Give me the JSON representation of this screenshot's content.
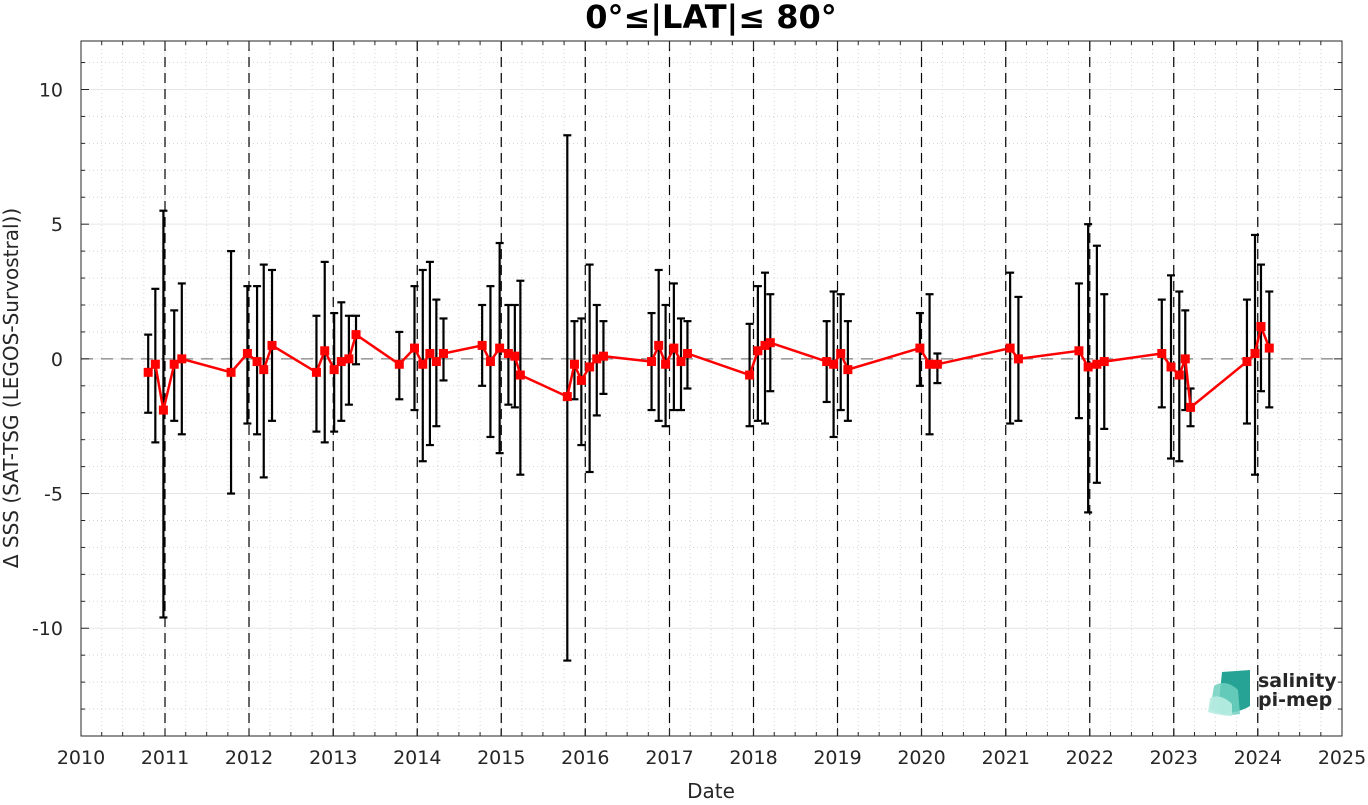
{
  "chart_data": {
    "type": "line",
    "title": "0°≤|LAT|≤ 80°",
    "xlabel": "Date",
    "ylabel": "Δ SSS (SAT-TSG (LEGOS-Survostral))",
    "xlim": [
      "2010-01-01",
      "2025-01-01"
    ],
    "ylim": [
      -14,
      11.8
    ],
    "x_ticks": [
      "2010",
      "2011",
      "2012",
      "2013",
      "2014",
      "2015",
      "2016",
      "2017",
      "2018",
      "2019",
      "2020",
      "2021",
      "2022",
      "2023",
      "2024",
      "2025"
    ],
    "y_ticks": [
      10,
      5,
      0,
      -5,
      -10
    ],
    "y_tick_labels": [
      "10",
      "5",
      "0",
      "-5",
      "-10"
    ],
    "grid": true,
    "minor_grid": true,
    "zero_line": {
      "y": 0,
      "style": "dashed",
      "color": "#808080"
    },
    "year_markers": [
      "2011",
      "2012",
      "2013",
      "2014",
      "2015",
      "2016",
      "2017",
      "2018",
      "2019",
      "2020",
      "2021",
      "2022",
      "2023",
      "2024"
    ],
    "series": [
      {
        "color": "#ff0000",
        "marker": "square",
        "errorbar_color": "#000000",
        "points": [
          {
            "x": "2010-10-20",
            "y": -0.5,
            "lo": -2.0,
            "hi": 0.9
          },
          {
            "x": "2010-11-20",
            "y": -0.2,
            "lo": -3.1,
            "hi": 2.6
          },
          {
            "x": "2010-12-25",
            "y": -1.9,
            "lo": -9.6,
            "hi": 5.5
          },
          {
            "x": "2011-02-10",
            "y": -0.2,
            "lo": -2.3,
            "hi": 1.8
          },
          {
            "x": "2011-03-15",
            "y": 0.0,
            "lo": -2.8,
            "hi": 2.8
          },
          {
            "x": "2011-10-15",
            "y": -0.5,
            "lo": -5.0,
            "hi": 4.0
          },
          {
            "x": "2011-12-25",
            "y": 0.2,
            "lo": -2.4,
            "hi": 2.7
          },
          {
            "x": "2012-02-05",
            "y": -0.1,
            "lo": -2.8,
            "hi": 2.7
          },
          {
            "x": "2012-03-05",
            "y": -0.4,
            "lo": -4.4,
            "hi": 3.5
          },
          {
            "x": "2012-04-10",
            "y": 0.5,
            "lo": -2.3,
            "hi": 3.3
          },
          {
            "x": "2012-10-20",
            "y": -0.5,
            "lo": -2.7,
            "hi": 1.6
          },
          {
            "x": "2012-11-25",
            "y": 0.3,
            "lo": -3.1,
            "hi": 3.6
          },
          {
            "x": "2013-01-05",
            "y": -0.4,
            "lo": -2.7,
            "hi": 1.7
          },
          {
            "x": "2013-02-05",
            "y": -0.1,
            "lo": -2.3,
            "hi": 2.1
          },
          {
            "x": "2013-03-10",
            "y": 0.0,
            "lo": -1.7,
            "hi": 1.6
          },
          {
            "x": "2013-04-10",
            "y": 0.9,
            "lo": -0.2,
            "hi": 1.6
          },
          {
            "x": "2013-10-15",
            "y": -0.2,
            "lo": -1.5,
            "hi": 1.0
          },
          {
            "x": "2013-12-20",
            "y": 0.4,
            "lo": -1.9,
            "hi": 2.7
          },
          {
            "x": "2014-01-25",
            "y": -0.2,
            "lo": -3.8,
            "hi": 3.3
          },
          {
            "x": "2014-02-25",
            "y": 0.2,
            "lo": -3.2,
            "hi": 3.6
          },
          {
            "x": "2014-03-25",
            "y": -0.1,
            "lo": -2.5,
            "hi": 2.2
          },
          {
            "x": "2014-04-25",
            "y": 0.2,
            "lo": -0.8,
            "hi": 1.5
          },
          {
            "x": "2014-10-10",
            "y": 0.5,
            "lo": -1.0,
            "hi": 2.0
          },
          {
            "x": "2014-11-15",
            "y": -0.1,
            "lo": -2.9,
            "hi": 2.7
          },
          {
            "x": "2014-12-25",
            "y": 0.4,
            "lo": -3.5,
            "hi": 4.3
          },
          {
            "x": "2015-02-01",
            "y": 0.2,
            "lo": -1.7,
            "hi": 2.0
          },
          {
            "x": "2015-03-01",
            "y": 0.1,
            "lo": -1.8,
            "hi": 2.0
          },
          {
            "x": "2015-03-25",
            "y": -0.6,
            "lo": -4.3,
            "hi": 2.9
          },
          {
            "x": "2015-10-15",
            "y": -1.4,
            "lo": -11.2,
            "hi": 8.3
          },
          {
            "x": "2015-11-15",
            "y": -0.2,
            "lo": -1.5,
            "hi": 1.4
          },
          {
            "x": "2015-12-15",
            "y": -0.8,
            "lo": -3.2,
            "hi": 1.5
          },
          {
            "x": "2016-01-20",
            "y": -0.3,
            "lo": -4.2,
            "hi": 3.5
          },
          {
            "x": "2016-02-20",
            "y": 0.0,
            "lo": -2.1,
            "hi": 2.0
          },
          {
            "x": "2016-03-20",
            "y": 0.1,
            "lo": -1.3,
            "hi": 1.4
          },
          {
            "x": "2016-10-15",
            "y": -0.1,
            "lo": -1.9,
            "hi": 1.7
          },
          {
            "x": "2016-11-15",
            "y": 0.5,
            "lo": -2.3,
            "hi": 3.3
          },
          {
            "x": "2016-12-15",
            "y": -0.2,
            "lo": -2.5,
            "hi": 2.0
          },
          {
            "x": "2017-01-20",
            "y": 0.4,
            "lo": -1.9,
            "hi": 2.8
          },
          {
            "x": "2017-02-20",
            "y": -0.1,
            "lo": -1.9,
            "hi": 1.5
          },
          {
            "x": "2017-03-20",
            "y": 0.2,
            "lo": -1.1,
            "hi": 1.4
          },
          {
            "x": "2017-12-15",
            "y": -0.6,
            "lo": -2.5,
            "hi": 1.3
          },
          {
            "x": "2018-01-20",
            "y": 0.3,
            "lo": -2.3,
            "hi": 2.7
          },
          {
            "x": "2018-02-20",
            "y": 0.5,
            "lo": -2.4,
            "hi": 3.2
          },
          {
            "x": "2018-03-15",
            "y": 0.6,
            "lo": -1.2,
            "hi": 2.4
          },
          {
            "x": "2018-11-15",
            "y": -0.1,
            "lo": -1.6,
            "hi": 1.4
          },
          {
            "x": "2018-12-15",
            "y": -0.2,
            "lo": -2.9,
            "hi": 2.5
          },
          {
            "x": "2019-01-15",
            "y": 0.2,
            "lo": -1.9,
            "hi": 2.4
          },
          {
            "x": "2019-02-15",
            "y": -0.4,
            "lo": -2.3,
            "hi": 1.4
          },
          {
            "x": "2019-12-25",
            "y": 0.4,
            "lo": -1.0,
            "hi": 1.7
          },
          {
            "x": "2020-02-05",
            "y": -0.2,
            "lo": -2.8,
            "hi": 2.4
          },
          {
            "x": "2020-03-10",
            "y": -0.2,
            "lo": -0.9,
            "hi": 0.2
          },
          {
            "x": "2021-01-20",
            "y": 0.4,
            "lo": -2.4,
            "hi": 3.2
          },
          {
            "x": "2021-02-25",
            "y": 0.0,
            "lo": -2.3,
            "hi": 2.3
          },
          {
            "x": "2021-11-15",
            "y": 0.3,
            "lo": -2.2,
            "hi": 2.8
          },
          {
            "x": "2021-12-25",
            "y": -0.3,
            "lo": -5.7,
            "hi": 5.0
          },
          {
            "x": "2022-02-01",
            "y": -0.2,
            "lo": -4.6,
            "hi": 4.2
          },
          {
            "x": "2022-03-05",
            "y": -0.1,
            "lo": -2.6,
            "hi": 2.4
          },
          {
            "x": "2022-11-10",
            "y": 0.2,
            "lo": -1.8,
            "hi": 2.2
          },
          {
            "x": "2022-12-20",
            "y": -0.3,
            "lo": -3.7,
            "hi": 3.1
          },
          {
            "x": "2023-01-25",
            "y": -0.6,
            "lo": -3.8,
            "hi": 2.5
          },
          {
            "x": "2023-02-20",
            "y": 0.0,
            "lo": -1.9,
            "hi": 1.8
          },
          {
            "x": "2023-03-15",
            "y": -1.8,
            "lo": -2.5,
            "hi": -1.1
          },
          {
            "x": "2023-11-15",
            "y": -0.1,
            "lo": -2.4,
            "hi": 2.2
          },
          {
            "x": "2023-12-20",
            "y": 0.2,
            "lo": -4.3,
            "hi": 4.6
          },
          {
            "x": "2024-01-15",
            "y": 1.2,
            "lo": -1.2,
            "hi": 3.5
          },
          {
            "x": "2024-02-20",
            "y": 0.4,
            "lo": -1.8,
            "hi": 2.5
          }
        ]
      }
    ]
  },
  "logo": {
    "line1": "salinity",
    "line2": "pi-mep",
    "color": "#1a9e8f"
  }
}
